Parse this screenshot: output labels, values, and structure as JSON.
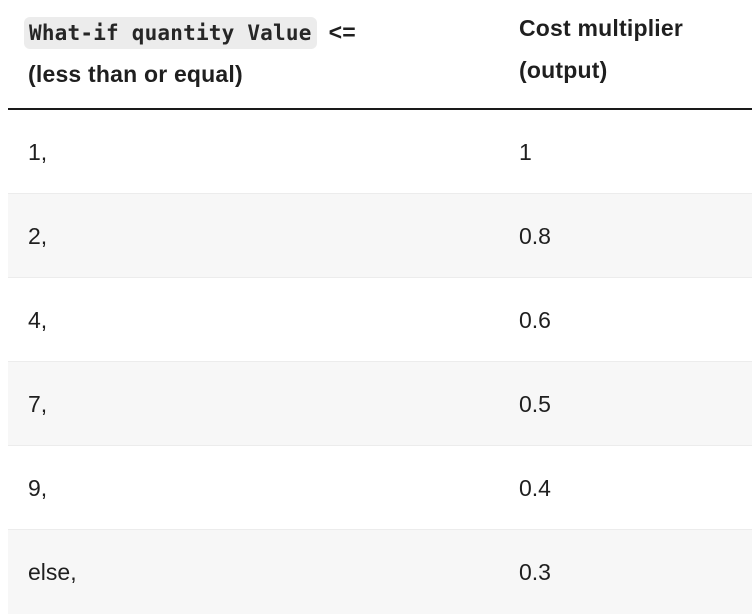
{
  "table": {
    "header": {
      "col1_code": "What-if quantity Value",
      "col1_operator": "<=",
      "col1_suffix": "(less than or equal)",
      "col2_line1": "Cost multiplier",
      "col2_line2": "(output)"
    },
    "rows": [
      {
        "threshold": "1,",
        "multiplier": "1"
      },
      {
        "threshold": "2,",
        "multiplier": "0.8"
      },
      {
        "threshold": "4,",
        "multiplier": "0.6"
      },
      {
        "threshold": "7,",
        "multiplier": "0.5"
      },
      {
        "threshold": "9,",
        "multiplier": "0.4"
      },
      {
        "threshold": "else,",
        "multiplier": "0.3"
      }
    ]
  }
}
